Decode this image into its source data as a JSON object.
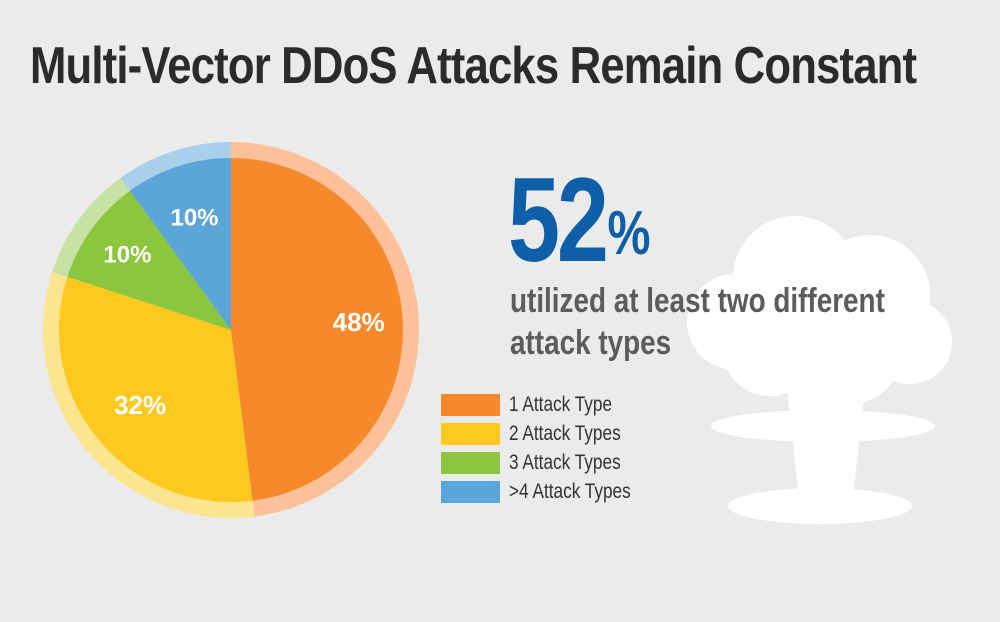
{
  "title": "Multi-Vector DDoS Attacks Remain Constant",
  "stat": {
    "value": "52",
    "unit": "%",
    "description": "utilized at least two different attack types"
  },
  "cloud_icon": "mushroom-cloud-icon",
  "chart_data": {
    "type": "pie",
    "categories": [
      "1 Attack Type",
      "2 Attack Types",
      "3 Attack Types",
      ">4 Attack Types"
    ],
    "values": [
      48,
      32,
      10,
      10
    ],
    "value_labels": [
      "48%",
      "32%",
      "10%",
      "10%"
    ],
    "colors": [
      "#f5892c",
      "#fdc91e",
      "#8cc63f",
      "#5ca5d8"
    ],
    "ring_colors": [
      "#fcc198",
      "#fde48f",
      "#c6e3a3",
      "#a9cfeb"
    ],
    "start": "12 o'clock",
    "direction": "clockwise",
    "legend_position": "right"
  }
}
